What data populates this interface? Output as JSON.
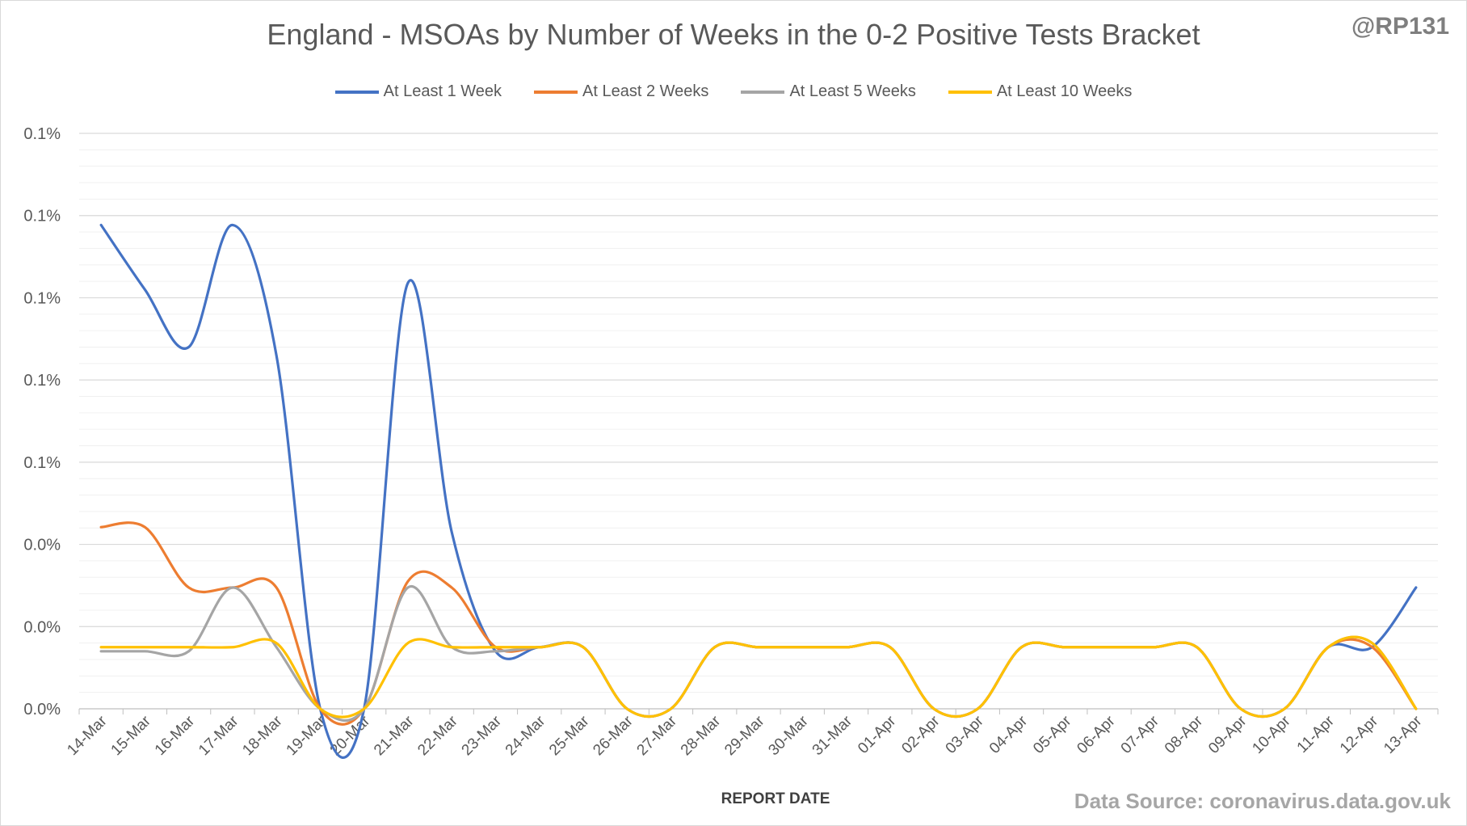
{
  "watermark": "@RP131",
  "source_note": "Data Source: coronavirus.data.gov.uk",
  "chart_data": {
    "type": "line",
    "title": "England - MSOAs by Number of Weeks in the 0-2 Positive Tests Bracket",
    "xlabel": "REPORT DATE",
    "ylabel": "",
    "ylim": [
      0,
      0.0014
    ],
    "y_tick_values": [
      0,
      0.0002,
      0.0004,
      0.0006,
      0.0008,
      0.001,
      0.0012,
      0.0014
    ],
    "y_tick_labels": [
      "0.0%",
      "0.0%",
      "0.0%",
      "0.1%",
      "0.1%",
      "0.1%",
      "0.1%",
      "0.1%"
    ],
    "grid": true,
    "legend_position": "top-center",
    "categories": [
      "14-Mar",
      "15-Mar",
      "16-Mar",
      "17-Mar",
      "18-Mar",
      "19-Mar",
      "20-Mar",
      "21-Mar",
      "22-Mar",
      "23-Mar",
      "24-Mar",
      "25-Mar",
      "26-Mar",
      "27-Mar",
      "28-Mar",
      "29-Mar",
      "30-Mar",
      "31-Mar",
      "01-Apr",
      "02-Apr",
      "03-Apr",
      "04-Apr",
      "05-Apr",
      "06-Apr",
      "07-Apr",
      "08-Apr",
      "09-Apr",
      "10-Apr",
      "11-Apr",
      "12-Apr",
      "13-Apr"
    ],
    "series": [
      {
        "name": "At Least 1 Week",
        "color": "#4472c4",
        "values": [
          0.001177,
          0.00102,
          0.00088,
          0.001177,
          0.00086,
          0,
          0,
          0.001036,
          0.00043,
          0.00014,
          0.00015,
          0.00015,
          0,
          0,
          0.00015,
          0.00015,
          0.00015,
          0.00015,
          0.00015,
          0,
          0,
          0.00015,
          0.00015,
          0.00015,
          0.00015,
          0.00015,
          0,
          0,
          0.00015,
          0.00015,
          0.000295
        ]
      },
      {
        "name": "At Least 2 Weeks",
        "color": "#ed7d31",
        "values": [
          0.000442,
          0.000442,
          0.000295,
          0.000295,
          0.000295,
          0,
          0,
          0.00031,
          0.000295,
          0.00015,
          0.00015,
          0.00015,
          0,
          0,
          0.00015,
          0.00015,
          0.00015,
          0.00015,
          0.00015,
          0,
          0,
          0.00015,
          0.00015,
          0.00015,
          0.00015,
          0.00015,
          0,
          0,
          0.00015,
          0.00015,
          0
        ]
      },
      {
        "name": "At Least 5 Weeks",
        "color": "#a5a5a5",
        "values": [
          0.00014,
          0.00014,
          0.00014,
          0.000295,
          0.00015,
          0,
          0,
          0.000295,
          0.00015,
          0.00014,
          0.00015,
          0.00015,
          0,
          0,
          0.00015,
          0.00015,
          0.00015,
          0.00015,
          0.00015,
          0,
          0,
          0.00015,
          0.00015,
          0.00015,
          0.00015,
          0.00015,
          0,
          0,
          0.00015,
          0.00016,
          0
        ]
      },
      {
        "name": "At Least 10 Weeks",
        "color": "#ffc000",
        "values": [
          0.00015,
          0.00015,
          0.00015,
          0.00015,
          0.00016,
          0,
          0,
          0.00016,
          0.00015,
          0.00015,
          0.00015,
          0.00015,
          0,
          0,
          0.00015,
          0.00015,
          0.00015,
          0.00015,
          0.00015,
          0,
          0,
          0.00015,
          0.00015,
          0.00015,
          0.00015,
          0.00015,
          0,
          0,
          0.00015,
          0.00016,
          0
        ]
      }
    ]
  }
}
